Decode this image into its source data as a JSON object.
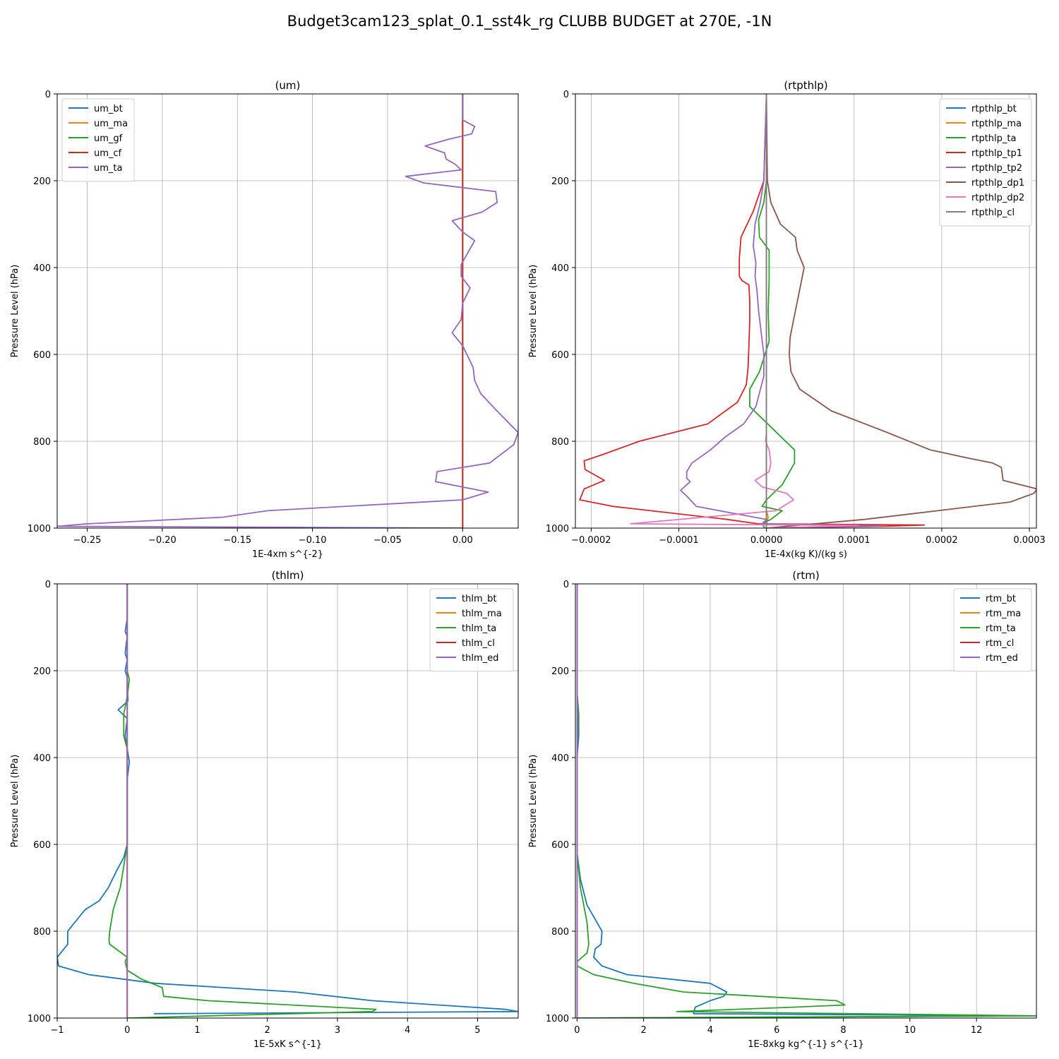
{
  "figure": {
    "suptitle": "Budget3cam123_splat_0.1_sst4k_rg CLUBB BUDGET at 270E, -1N"
  },
  "chart_data": [
    {
      "type": "line",
      "title": "(um)",
      "xlabel": "1E-4xm s^{-2}",
      "ylabel": "Pressure Level (hPa)",
      "xlim": [
        -0.27,
        0.037
      ],
      "ylim": [
        1000,
        0
      ],
      "xticks": [
        -0.25,
        -0.2,
        -0.15,
        -0.1,
        -0.05,
        0.0
      ],
      "xtick_labels": [
        "−0.25",
        "−0.20",
        "−0.15",
        "−0.10",
        "−0.05",
        "0.00"
      ],
      "yticks": [
        0,
        200,
        400,
        600,
        800,
        1000
      ],
      "grid": true,
      "legend_position": "upper-left",
      "series": [
        {
          "name": "um_bt",
          "color": "#1f77b4",
          "x": [
            0,
            0
          ],
          "y": [
            0,
            1000
          ]
        },
        {
          "name": "um_ma",
          "color": "#ff7f0e",
          "x": [
            0,
            0
          ],
          "y": [
            0,
            1000
          ]
        },
        {
          "name": "um_gf",
          "color": "#2ca02c",
          "x": [
            0,
            0
          ],
          "y": [
            0,
            1000
          ]
        },
        {
          "name": "um_cf",
          "color": "#d62728",
          "x": [
            0,
            0
          ],
          "y": [
            0,
            1000
          ]
        },
        {
          "name": "um_ta",
          "color": "#9467bd",
          "x": [
            0.0,
            0.0,
            0.0,
            0.0,
            0.008,
            0.006,
            -0.01,
            -0.025,
            -0.012,
            -0.011,
            -0.005,
            -0.001,
            -0.038,
            -0.026,
            0.022,
            0.023,
            0.013,
            -0.007,
            0.0,
            0.008,
            -0.001,
            -0.001,
            0.005,
            0.0,
            -0.001,
            -0.007,
            0.0,
            0.007,
            0.008,
            0.012,
            0.022,
            0.037,
            0.034,
            0.018,
            -0.017,
            -0.018,
            0.017,
            0.0,
            -0.13,
            -0.16,
            -0.25,
            -0.27,
            0.0
          ],
          "y": [
            0,
            20,
            40,
            60,
            75,
            92,
            105,
            120,
            136,
            150,
            162,
            175,
            190,
            205,
            225,
            250,
            272,
            292,
            318,
            338,
            393,
            420,
            447,
            482,
            520,
            550,
            580,
            630,
            660,
            690,
            727,
            780,
            808,
            850,
            870,
            893,
            917,
            935,
            960,
            975,
            990,
            996,
            1000
          ]
        }
      ]
    },
    {
      "type": "line",
      "title": "(rtpthlp)",
      "xlabel": "1E-4x(kg K)/(kg s)",
      "ylabel": "Pressure Level (hPa)",
      "xlim": [
        -0.000218,
        0.000308
      ],
      "ylim": [
        1000,
        0
      ],
      "xticks": [
        -0.0002,
        -0.0001,
        0.0,
        0.0001,
        0.0002,
        0.0003
      ],
      "xtick_labels": [
        "−0.0002",
        "−0.0001",
        "0.0000",
        "0.0001",
        "0.0002",
        "0.0003"
      ],
      "yticks": [
        0,
        200,
        400,
        600,
        800,
        1000
      ],
      "grid": true,
      "legend_position": "upper-right",
      "series": [
        {
          "name": "rtpthlp_bt",
          "color": "#1f77b4",
          "x": [
            0,
            0
          ],
          "y": [
            0,
            1000
          ]
        },
        {
          "name": "rtpthlp_ma",
          "color": "#ff7f0e",
          "x": [
            0,
            0,
            2e-06,
            0.0,
            0.0
          ],
          "y": [
            0,
            960,
            975,
            990,
            1000
          ]
        },
        {
          "name": "rtpthlp_ta",
          "color": "#2ca02c",
          "x": [
            0.0,
            0.0,
            -3e-06,
            -9e-06,
            -8e-06,
            3e-06,
            3e-06,
            2e-06,
            3e-06,
            -8e-06,
            -1.9e-05,
            -1.9e-05,
            3.2e-05,
            3.2e-05,
            1.8e-05,
            0.0,
            -5e-06,
            1.8e-05,
            5e-06,
            -5e-06,
            -2e-06
          ],
          "y": [
            0,
            200,
            250,
            290,
            330,
            360,
            430,
            500,
            570,
            640,
            680,
            720,
            820,
            850,
            900,
            935,
            950,
            960,
            980,
            990,
            1000
          ]
        },
        {
          "name": "rtpthlp_tp1",
          "color": "#d62728",
          "x": [
            0.0,
            -3e-06,
            -1.5e-05,
            -2.9e-05,
            -3.1e-05,
            -3.1e-05,
            -2.8e-05,
            -2e-05,
            -1.9e-05,
            -1.9e-05,
            -2e-05,
            -2.1e-05,
            -2.3e-05,
            -3.3e-05,
            -6.7e-05,
            -0.000145,
            -0.000186,
            -0.000208,
            -0.000207,
            -0.000185,
            -0.000208,
            -0.000213,
            -0.000175,
            -4.5e-05,
            -1e-05,
            0.00018,
            0.00013,
            0.0
          ],
          "y": [
            0,
            200,
            270,
            330,
            380,
            420,
            430,
            440,
            480,
            520,
            580,
            630,
            670,
            710,
            760,
            800,
            830,
            845,
            865,
            890,
            910,
            935,
            950,
            980,
            990,
            993,
            996,
            1000
          ]
        },
        {
          "name": "rtpthlp_tp2",
          "color": "#9467bd",
          "x": [
            0.0,
            -3e-06,
            -7e-06,
            -1.3e-05,
            -1.5e-05,
            -1.2e-05,
            -1.3e-05,
            -1.1e-05,
            -9e-06,
            -6e-06,
            -3e-06,
            -3e-06,
            -1.2e-05,
            -2.6e-05,
            -4.7e-05,
            -6.4e-05,
            -8.5e-05,
            -9.1e-05,
            -9.1e-05,
            -8.7e-05,
            -9.8e-05,
            -8.9e-05,
            -8e-05,
            0.0,
            -5e-06,
            0.00013,
            0.0
          ],
          "y": [
            0,
            200,
            250,
            300,
            350,
            390,
            420,
            450,
            500,
            550,
            600,
            650,
            720,
            760,
            790,
            820,
            850,
            870,
            885,
            893,
            913,
            930,
            950,
            980,
            990,
            995,
            1000
          ]
        },
        {
          "name": "rtpthlp_dp1",
          "color": "#8c564b",
          "x": [
            0.0,
            1e-06,
            5e-06,
            1.6e-05,
            3.3e-05,
            3.5e-05,
            4.3e-05,
            3.8e-05,
            3.5e-05,
            3.1e-05,
            2.7e-05,
            2.6e-05,
            2.8e-05,
            3.8e-05,
            7.4e-05,
            0.000138,
            0.000187,
            0.000233,
            0.000258,
            0.000268,
            0.00027,
            0.000309,
            0.000305,
            0.000278,
            0.000112,
            0.0
          ],
          "y": [
            0,
            200,
            250,
            300,
            330,
            360,
            400,
            450,
            480,
            520,
            560,
            600,
            640,
            680,
            730,
            780,
            820,
            840,
            850,
            860,
            890,
            910,
            920,
            940,
            980,
            1000
          ]
        },
        {
          "name": "rtpthlp_dp2",
          "color": "#e377c2",
          "x": [
            0.0,
            0.0,
            -1e-06,
            3e-06,
            5e-06,
            3e-06,
            -1.3e-05,
            -5e-06,
            2.3e-05,
            3.1e-05,
            1.1e-05,
            -0.000155,
            0.000105,
            0.0
          ],
          "y": [
            0,
            780,
            800,
            820,
            850,
            870,
            890,
            905,
            920,
            935,
            960,
            990,
            994,
            1000
          ]
        },
        {
          "name": "rtpthlp_cl",
          "color": "#7f7f7f",
          "x": [
            0,
            0
          ],
          "y": [
            0,
            1000
          ]
        }
      ]
    },
    {
      "type": "line",
      "title": "(thlm)",
      "xlabel": "1E-5xK s^{-1}",
      "ylabel": "Pressure Level (hPa)",
      "xlim": [
        -1.0,
        5.58
      ],
      "ylim": [
        1000,
        0
      ],
      "xticks": [
        -1,
        0,
        1,
        2,
        3,
        4,
        5
      ],
      "xtick_labels": [
        "−1",
        "0",
        "1",
        "2",
        "3",
        "4",
        "5"
      ],
      "yticks": [
        0,
        200,
        400,
        600,
        800,
        1000
      ],
      "grid": true,
      "legend_position": "upper-right",
      "series": [
        {
          "name": "thlm_bt",
          "color": "#1f77b4",
          "x": [
            0.0,
            0.0,
            -0.03,
            0.0,
            -0.03,
            0.0,
            -0.03,
            0.0,
            0.01,
            -0.13,
            0.0,
            -0.03,
            0.0,
            0.03,
            0.0,
            0.0,
            -0.05,
            -0.15,
            -0.27,
            -0.4,
            -0.6,
            -0.75,
            -0.85,
            -0.85,
            -1.0,
            -0.98,
            -0.55,
            0.4,
            2.4,
            3.5,
            5.4,
            5.58,
            0.38
          ],
          "y": [
            0,
            80,
            110,
            120,
            160,
            175,
            200,
            215,
            270,
            290,
            310,
            350,
            380,
            410,
            450,
            600,
            630,
            660,
            700,
            730,
            750,
            780,
            800,
            830,
            860,
            880,
            900,
            920,
            940,
            960,
            980,
            985,
            990
          ]
        },
        {
          "name": "thlm_ma",
          "color": "#ff7f0e",
          "x": [
            0,
            0
          ],
          "y": [
            0,
            1000
          ]
        },
        {
          "name": "thlm_ta",
          "color": "#2ca02c",
          "x": [
            0.0,
            0.0,
            0.03,
            0.0,
            -0.05,
            -0.05,
            0.0,
            0.0,
            0.0,
            -0.05,
            -0.1,
            -0.2,
            -0.25,
            -0.26,
            -0.25,
            0.0,
            -0.03,
            0.0,
            0.2,
            0.5,
            0.52,
            1.15,
            3.55,
            3.5,
            0.0
          ],
          "y": [
            0,
            200,
            220,
            260,
            300,
            350,
            380,
            450,
            600,
            650,
            700,
            750,
            800,
            820,
            830,
            860,
            870,
            890,
            910,
            930,
            950,
            960,
            980,
            985,
            1000
          ]
        },
        {
          "name": "thlm_cl",
          "color": "#d62728",
          "x": [
            0,
            0
          ],
          "y": [
            0,
            1000
          ]
        },
        {
          "name": "thlm_ed",
          "color": "#9467bd",
          "x": [
            0,
            0
          ],
          "y": [
            0,
            1000
          ]
        }
      ]
    },
    {
      "type": "line",
      "title": "(rtm)",
      "xlabel": "1E-8xkg kg^{-1} s^{-1}",
      "ylabel": "Pressure Level (hPa)",
      "xlim": [
        -0.05,
        13.8
      ],
      "ylim": [
        1000,
        0
      ],
      "xticks": [
        0,
        2,
        4,
        6,
        8,
        10,
        12
      ],
      "xtick_labels": [
        "0",
        "2",
        "4",
        "6",
        "8",
        "10",
        "12"
      ],
      "yticks": [
        0,
        200,
        400,
        600,
        800,
        1000
      ],
      "grid": true,
      "legend_position": "upper-right",
      "series": [
        {
          "name": "rtm_bt",
          "color": "#1f77b4",
          "x": [
            0.0,
            0.0,
            0.05,
            0.05,
            0.0,
            0.0,
            0.1,
            0.3,
            0.6,
            0.75,
            0.72,
            0.55,
            0.5,
            0.75,
            1.5,
            4.0,
            4.5,
            4.4,
            4.0,
            3.55,
            3.5,
            13.8,
            0.0
          ],
          "y": [
            0,
            250,
            300,
            350,
            400,
            620,
            680,
            740,
            780,
            800,
            830,
            840,
            860,
            880,
            900,
            920,
            940,
            950,
            960,
            975,
            990,
            995,
            1000
          ]
        },
        {
          "name": "rtm_ma",
          "color": "#ff7f0e",
          "x": [
            0,
            0
          ],
          "y": [
            0,
            1000
          ]
        },
        {
          "name": "rtm_ta",
          "color": "#2ca02c",
          "x": [
            0.0,
            0.0,
            0.03,
            0.0,
            0.0,
            0.1,
            0.3,
            0.35,
            0.3,
            0.0,
            0.0,
            0.5,
            1.7,
            3.2,
            7.8,
            8.05,
            6.5,
            3.0,
            13.8,
            0.0
          ],
          "y": [
            0,
            250,
            300,
            400,
            620,
            700,
            780,
            830,
            850,
            870,
            880,
            900,
            920,
            940,
            960,
            970,
            975,
            985,
            995,
            1000
          ]
        },
        {
          "name": "rtm_cl",
          "color": "#d62728",
          "x": [
            0,
            0
          ],
          "y": [
            0,
            1000
          ]
        },
        {
          "name": "rtm_ed",
          "color": "#9467bd",
          "x": [
            0,
            0
          ],
          "y": [
            0,
            1000
          ]
        }
      ]
    }
  ]
}
